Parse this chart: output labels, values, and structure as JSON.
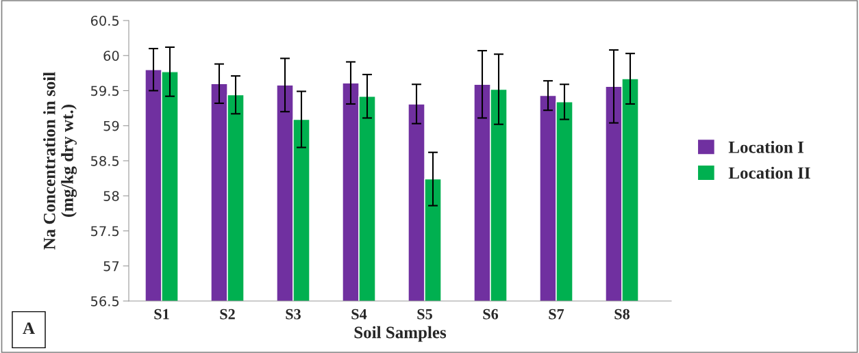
{
  "chart_data": {
    "type": "bar",
    "categories": [
      "S1",
      "S2",
      "S3",
      "S4",
      "S5",
      "S6",
      "S7",
      "S8"
    ],
    "series": [
      {
        "name": "Location I",
        "color": "#7030a0",
        "values": [
          59.8,
          59.6,
          59.58,
          59.61,
          59.31,
          59.59,
          59.43,
          59.56
        ],
        "errors": [
          0.3,
          0.28,
          0.38,
          0.3,
          0.28,
          0.48,
          0.21,
          0.52
        ]
      },
      {
        "name": "Location II",
        "color": "#00b050",
        "values": [
          59.77,
          59.44,
          59.09,
          59.42,
          58.24,
          59.52,
          59.34,
          59.67
        ],
        "errors": [
          0.35,
          0.27,
          0.4,
          0.31,
          0.38,
          0.5,
          0.25,
          0.36
        ]
      }
    ],
    "xlabel": "Soil Samples",
    "ylabel": "Na Concentration in soil\n(mg/kg dry wt.)",
    "ylim": [
      56.5,
      60.5
    ],
    "yticks": [
      {
        "value": 56.5,
        "label": "56.5"
      },
      {
        "value": 57,
        "label": "57"
      },
      {
        "value": 57.5,
        "label": "57.5"
      },
      {
        "value": 58,
        "label": "58"
      },
      {
        "value": 58.5,
        "label": "58.5"
      },
      {
        "value": 59,
        "label": "59"
      },
      {
        "value": 59.5,
        "label": "59.5"
      },
      {
        "value": 60,
        "label": "60"
      },
      {
        "value": 60.5,
        "label": "60.5"
      }
    ],
    "annotations": [
      "A"
    ],
    "legend": "right",
    "grid": false
  }
}
